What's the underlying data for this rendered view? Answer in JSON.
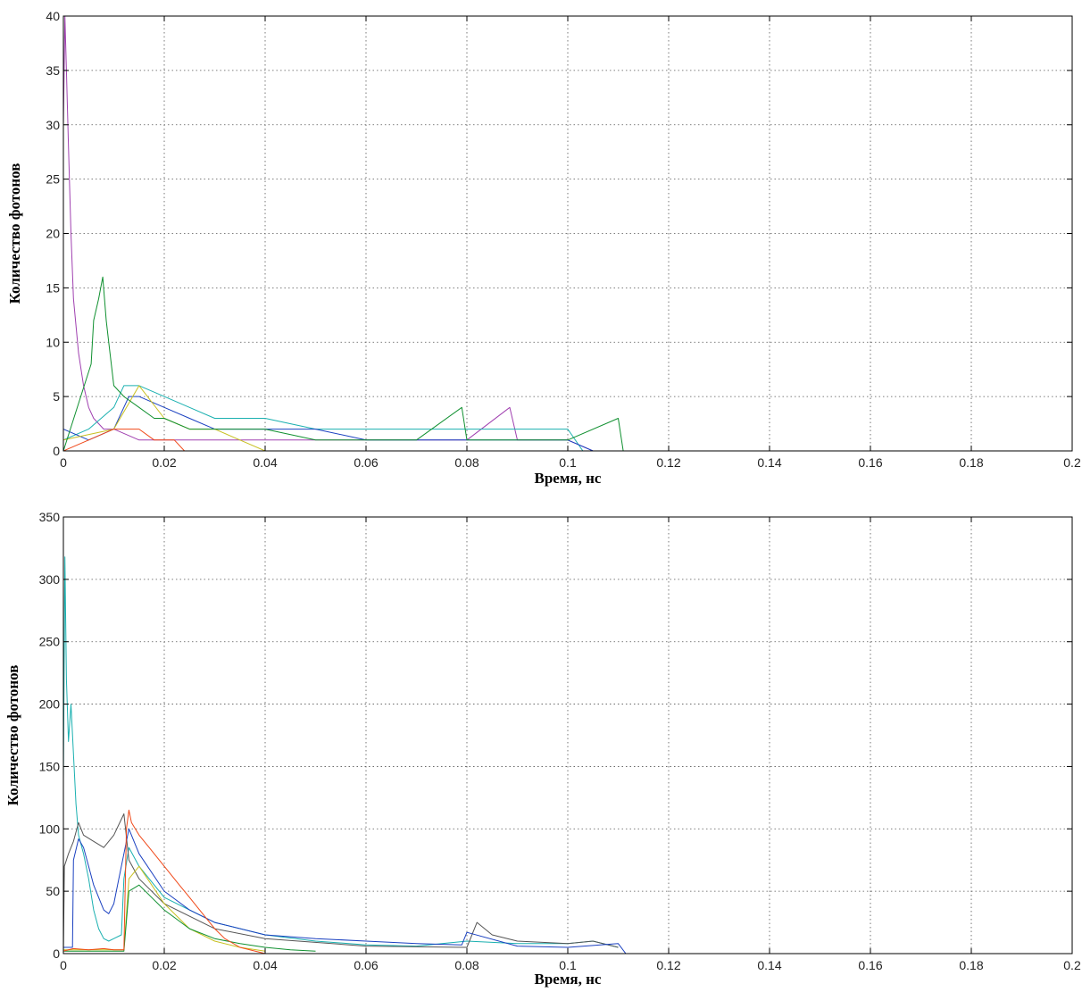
{
  "chart_data": [
    {
      "type": "line",
      "title": "",
      "xlabel": "Время, нс",
      "ylabel": "Количество фотонов",
      "xlim": [
        0,
        0.2
      ],
      "ylim": [
        0,
        40
      ],
      "xticks": [
        0,
        0.02,
        0.04,
        0.06,
        0.08,
        0.1,
        0.12,
        0.14,
        0.16,
        0.18,
        0.2
      ],
      "xtick_labels": [
        "0",
        "0.02",
        "0.04",
        "0.06",
        "0.08",
        "0.1",
        "0.12",
        "0.14",
        "0.16",
        "0.18",
        "0.2"
      ],
      "yticks": [
        0,
        5,
        10,
        15,
        20,
        25,
        30,
        35,
        40
      ],
      "ytick_labels": [
        "0",
        "5",
        "10",
        "15",
        "20",
        "25",
        "30",
        "35",
        "40"
      ],
      "grid": true,
      "series": [
        {
          "color": "#a040b0",
          "x": [
            0,
            0.0003,
            0.0006,
            0.001,
            0.0015,
            0.002,
            0.003,
            0.004,
            0.005,
            0.006,
            0.008,
            0.01,
            0.015,
            0.02,
            0.03,
            0.04,
            0.06,
            0.08,
            0.0885,
            0.09,
            0.1,
            0.105
          ],
          "y": [
            30,
            40,
            35,
            28,
            20,
            14,
            9,
            6,
            4,
            3,
            2,
            2,
            1,
            1,
            1,
            1,
            1,
            1,
            4,
            1,
            1,
            0
          ]
        },
        {
          "color": "#1ab0b0",
          "x": [
            0,
            0.005,
            0.01,
            0.012,
            0.015,
            0.02,
            0.025,
            0.03,
            0.04,
            0.05,
            0.06,
            0.07,
            0.08,
            0.09,
            0.1,
            0.103
          ],
          "y": [
            1,
            2,
            4,
            6,
            6,
            5,
            4,
            3,
            3,
            2,
            2,
            2,
            2,
            2,
            2,
            0
          ]
        },
        {
          "color": "#1a40c0",
          "x": [
            0,
            0.005,
            0.01,
            0.013,
            0.015,
            0.02,
            0.025,
            0.03,
            0.04,
            0.05,
            0.06,
            0.07,
            0.08,
            0.09,
            0.1,
            0.105
          ],
          "y": [
            2,
            1,
            2,
            5,
            5,
            4,
            3,
            2,
            2,
            2,
            1,
            1,
            1,
            1,
            1,
            0
          ]
        },
        {
          "color": "#c8c020",
          "x": [
            0,
            0.01,
            0.015,
            0.02,
            0.025,
            0.03,
            0.035,
            0.04
          ],
          "y": [
            1,
            2,
            6,
            3,
            2,
            2,
            1,
            0
          ]
        },
        {
          "color": "#f04818",
          "x": [
            0,
            0.005,
            0.01,
            0.012,
            0.015,
            0.018,
            0.02,
            0.022,
            0.024
          ],
          "y": [
            0,
            1,
            2,
            2,
            2,
            1,
            1,
            1,
            0
          ]
        },
        {
          "color": "#109030",
          "x": [
            0,
            0.0055,
            0.006,
            0.007,
            0.0078,
            0.0085,
            0.009,
            0.01,
            0.012,
            0.015,
            0.018,
            0.02,
            0.025,
            0.03,
            0.035,
            0.04,
            0.05,
            0.06,
            0.07,
            0.079,
            0.08,
            0.09,
            0.1,
            0.11,
            0.111
          ],
          "y": [
            0,
            8,
            12,
            14,
            16,
            12,
            10,
            6,
            5,
            4,
            3,
            3,
            2,
            2,
            2,
            2,
            1,
            1,
            1,
            4,
            1,
            1,
            1,
            3,
            0
          ]
        }
      ]
    },
    {
      "type": "line",
      "title": "",
      "xlabel": "Время, нс",
      "ylabel": "Количество фотонов",
      "xlim": [
        0,
        0.2
      ],
      "ylim": [
        0,
        350
      ],
      "xticks": [
        0,
        0.02,
        0.04,
        0.06,
        0.08,
        0.1,
        0.12,
        0.14,
        0.16,
        0.18,
        0.2
      ],
      "xtick_labels": [
        "0",
        "0.02",
        "0.04",
        "0.06",
        "0.08",
        "0.1",
        "0.12",
        "0.14",
        "0.16",
        "0.18",
        "0.2"
      ],
      "yticks": [
        0,
        50,
        100,
        150,
        200,
        250,
        300,
        350
      ],
      "ytick_labels": [
        "0",
        "50",
        "100",
        "150",
        "200",
        "250",
        "300",
        "350"
      ],
      "grid": true,
      "series": [
        {
          "color": "#1ab0b0",
          "x": [
            0,
            0.0003,
            0.0006,
            0.001,
            0.0015,
            0.002,
            0.0025,
            0.003,
            0.004,
            0.005,
            0.006,
            0.007,
            0.008,
            0.009,
            0.01,
            0.0115,
            0.012,
            0.013,
            0.015,
            0.02,
            0.03,
            0.04,
            0.05,
            0.06,
            0.07,
            0.08,
            0.09,
            0.1,
            0.105,
            0.11
          ],
          "y": [
            140,
            318,
            220,
            170,
            200,
            160,
            120,
            95,
            80,
            60,
            35,
            20,
            12,
            10,
            12,
            15,
            60,
            85,
            70,
            45,
            25,
            15,
            10,
            7,
            6,
            10,
            8,
            8,
            10,
            5
          ]
        },
        {
          "color": "#555555",
          "x": [
            0,
            0.0002,
            0.001,
            0.002,
            0.003,
            0.004,
            0.006,
            0.008,
            0.01,
            0.012,
            0.013,
            0.015,
            0.02,
            0.03,
            0.04,
            0.06,
            0.08,
            0.082,
            0.085,
            0.09,
            0.1,
            0.105,
            0.11
          ],
          "y": [
            0,
            70,
            80,
            90,
            105,
            95,
            90,
            85,
            95,
            112,
            75,
            60,
            40,
            20,
            12,
            6,
            5,
            25,
            15,
            10,
            8,
            10,
            5
          ]
        },
        {
          "color": "#1a40c0",
          "x": [
            0,
            0.0018,
            0.002,
            0.003,
            0.004,
            0.005,
            0.006,
            0.007,
            0.008,
            0.009,
            0.01,
            0.011,
            0.012,
            0.013,
            0.014,
            0.015,
            0.02,
            0.025,
            0.03,
            0.04,
            0.05,
            0.06,
            0.07,
            0.079,
            0.08,
            0.09,
            0.1,
            0.11,
            0.1115
          ],
          "y": [
            5,
            5,
            75,
            92,
            85,
            70,
            55,
            45,
            35,
            32,
            40,
            60,
            80,
            100,
            90,
            80,
            50,
            35,
            25,
            15,
            12,
            10,
            8,
            7,
            17,
            6,
            5,
            8,
            0
          ]
        },
        {
          "color": "#c8c020",
          "x": [
            0,
            0.012,
            0.013,
            0.015,
            0.02,
            0.025,
            0.03,
            0.035,
            0.04
          ],
          "y": [
            3,
            3,
            60,
            70,
            40,
            20,
            10,
            5,
            2
          ]
        },
        {
          "color": "#109030",
          "x": [
            0,
            0.012,
            0.013,
            0.015,
            0.02,
            0.025,
            0.03,
            0.035,
            0.04,
            0.045,
            0.05
          ],
          "y": [
            2,
            2,
            50,
            55,
            35,
            20,
            12,
            8,
            5,
            3,
            2
          ]
        },
        {
          "color": "#f04818",
          "x": [
            0,
            0.002,
            0.005,
            0.008,
            0.01,
            0.012,
            0.0125,
            0.013,
            0.0135,
            0.015,
            0.017,
            0.02,
            0.023,
            0.025,
            0.028,
            0.03,
            0.032,
            0.035,
            0.04
          ],
          "y": [
            2,
            4,
            3,
            4,
            3,
            3,
            100,
            115,
            105,
            95,
            85,
            70,
            55,
            45,
            30,
            20,
            12,
            5,
            0
          ]
        }
      ]
    }
  ]
}
